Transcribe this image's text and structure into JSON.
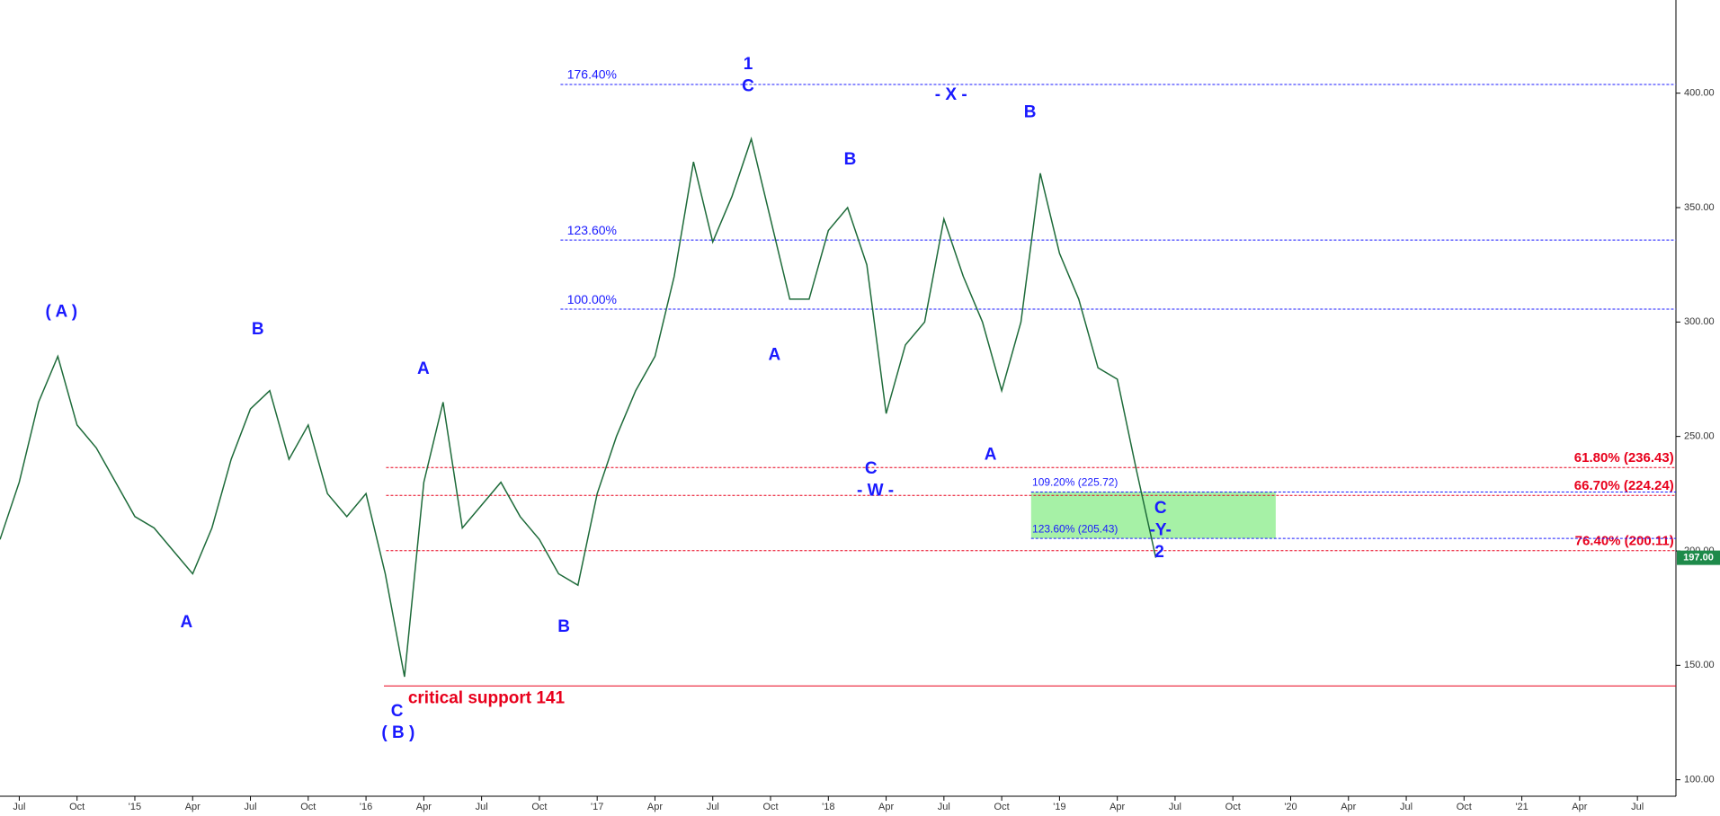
{
  "chart_data": {
    "type": "line",
    "color": "#1e6b3a",
    "x": [
      "2014-06",
      "2014-07",
      "2014-08",
      "2014-09",
      "2014-10",
      "2014-11",
      "2014-12",
      "2015-01",
      "2015-02",
      "2015-03",
      "2015-04",
      "2015-05",
      "2015-06",
      "2015-07",
      "2015-08",
      "2015-09",
      "2015-10",
      "2015-11",
      "2015-12",
      "2016-01",
      "2016-02",
      "2016-03",
      "2016-04",
      "2016-05",
      "2016-06",
      "2016-07",
      "2016-08",
      "2016-09",
      "2016-10",
      "2016-11",
      "2016-12",
      "2017-01",
      "2017-02",
      "2017-03",
      "2017-04",
      "2017-05",
      "2017-06",
      "2017-07",
      "2017-08",
      "2017-09",
      "2017-10",
      "2017-11",
      "2017-12",
      "2018-01",
      "2018-02",
      "2018-03",
      "2018-04",
      "2018-05",
      "2018-06",
      "2018-07",
      "2018-08",
      "2018-09",
      "2018-10",
      "2018-11",
      "2018-12",
      "2019-01",
      "2019-02",
      "2019-03",
      "2019-04",
      "2019-05",
      "2019-06"
    ],
    "values": [
      205,
      230,
      265,
      285,
      255,
      245,
      230,
      215,
      210,
      200,
      190,
      210,
      240,
      262,
      270,
      240,
      255,
      225,
      215,
      225,
      190,
      145,
      230,
      265,
      210,
      220,
      230,
      215,
      205,
      190,
      185,
      225,
      250,
      270,
      285,
      320,
      370,
      335,
      355,
      380,
      345,
      310,
      310,
      340,
      350,
      325,
      260,
      290,
      300,
      345,
      320,
      300,
      270,
      300,
      365,
      330,
      310,
      280,
      275,
      235,
      197
    ],
    "xlim": [
      "2014-06",
      "2021-09"
    ],
    "ylim": [
      92.8,
      440.7
    ],
    "xticks": [
      {
        "value": "2014-07",
        "label": "Jul"
      },
      {
        "value": "2014-10",
        "label": "Oct"
      },
      {
        "value": "2015-01",
        "label": "'15"
      },
      {
        "value": "2015-04",
        "label": "Apr"
      },
      {
        "value": "2015-07",
        "label": "Jul"
      },
      {
        "value": "2015-10",
        "label": "Oct"
      },
      {
        "value": "2016-01",
        "label": "'16"
      },
      {
        "value": "2016-04",
        "label": "Apr"
      },
      {
        "value": "2016-07",
        "label": "Jul"
      },
      {
        "value": "2016-10",
        "label": "Oct"
      },
      {
        "value": "2017-01",
        "label": "'17"
      },
      {
        "value": "2017-04",
        "label": "Apr"
      },
      {
        "value": "2017-07",
        "label": "Jul"
      },
      {
        "value": "2017-10",
        "label": "Oct"
      },
      {
        "value": "2018-01",
        "label": "'18"
      },
      {
        "value": "2018-04",
        "label": "Apr"
      },
      {
        "value": "2018-07",
        "label": "Jul"
      },
      {
        "value": "2018-10",
        "label": "Oct"
      },
      {
        "value": "2019-01",
        "label": "'19"
      },
      {
        "value": "2019-04",
        "label": "Apr"
      },
      {
        "value": "2019-07",
        "label": "Jul"
      },
      {
        "value": "2019-10",
        "label": "Oct"
      },
      {
        "value": "2020-01",
        "label": "'20"
      },
      {
        "value": "2020-04",
        "label": "Apr"
      },
      {
        "value": "2020-07",
        "label": "Jul"
      },
      {
        "value": "2020-10",
        "label": "Oct"
      },
      {
        "value": "2021-01",
        "label": "'21"
      },
      {
        "value": "2021-04",
        "label": "Apr"
      },
      {
        "value": "2021-07",
        "label": "Jul"
      }
    ],
    "yticks": [
      {
        "value": 100,
        "label": "100.00"
      },
      {
        "value": 150,
        "label": "150.00"
      },
      {
        "value": 200,
        "label": "200.00"
      },
      {
        "value": 250,
        "label": "250.00"
      },
      {
        "value": 300,
        "label": "300.00"
      },
      {
        "value": 350,
        "label": "350.00"
      },
      {
        "value": 400,
        "label": "400.00"
      }
    ],
    "last_price": {
      "value": 197,
      "label": "197.00"
    },
    "levels": [
      {
        "label": "176.40%",
        "value": 403.8,
        "color": "#1a1aff"
      },
      {
        "label": "123.60%",
        "value": 335.8,
        "color": "#1a1aff"
      },
      {
        "label": "100.00%",
        "value": 305.6,
        "color": "#1a1aff"
      },
      {
        "label": "61.80% (236.43)",
        "value": 236.43,
        "color": "#e8001c"
      },
      {
        "label": "66.70% (224.24)",
        "value": 224.24,
        "color": "#e8001c"
      },
      {
        "label": "76.40% (200.11)",
        "value": 200.11,
        "color": "#e8001c"
      },
      {
        "label": "109.20% (225.72)",
        "value": 225.72,
        "color": "#1a1aff"
      },
      {
        "label": "123.60% (205.43)",
        "value": 205.43,
        "color": "#1a1aff"
      },
      {
        "label": "critical support 141",
        "value": 141,
        "color": "#e8001c"
      }
    ],
    "annotations": [
      "( A )",
      "B",
      "A",
      "A",
      "C",
      "( B )",
      "B",
      "1",
      "C",
      "A",
      "B",
      "C",
      "- W -",
      "- X -",
      "A",
      "B",
      "C",
      "-Y-",
      "2"
    ]
  }
}
